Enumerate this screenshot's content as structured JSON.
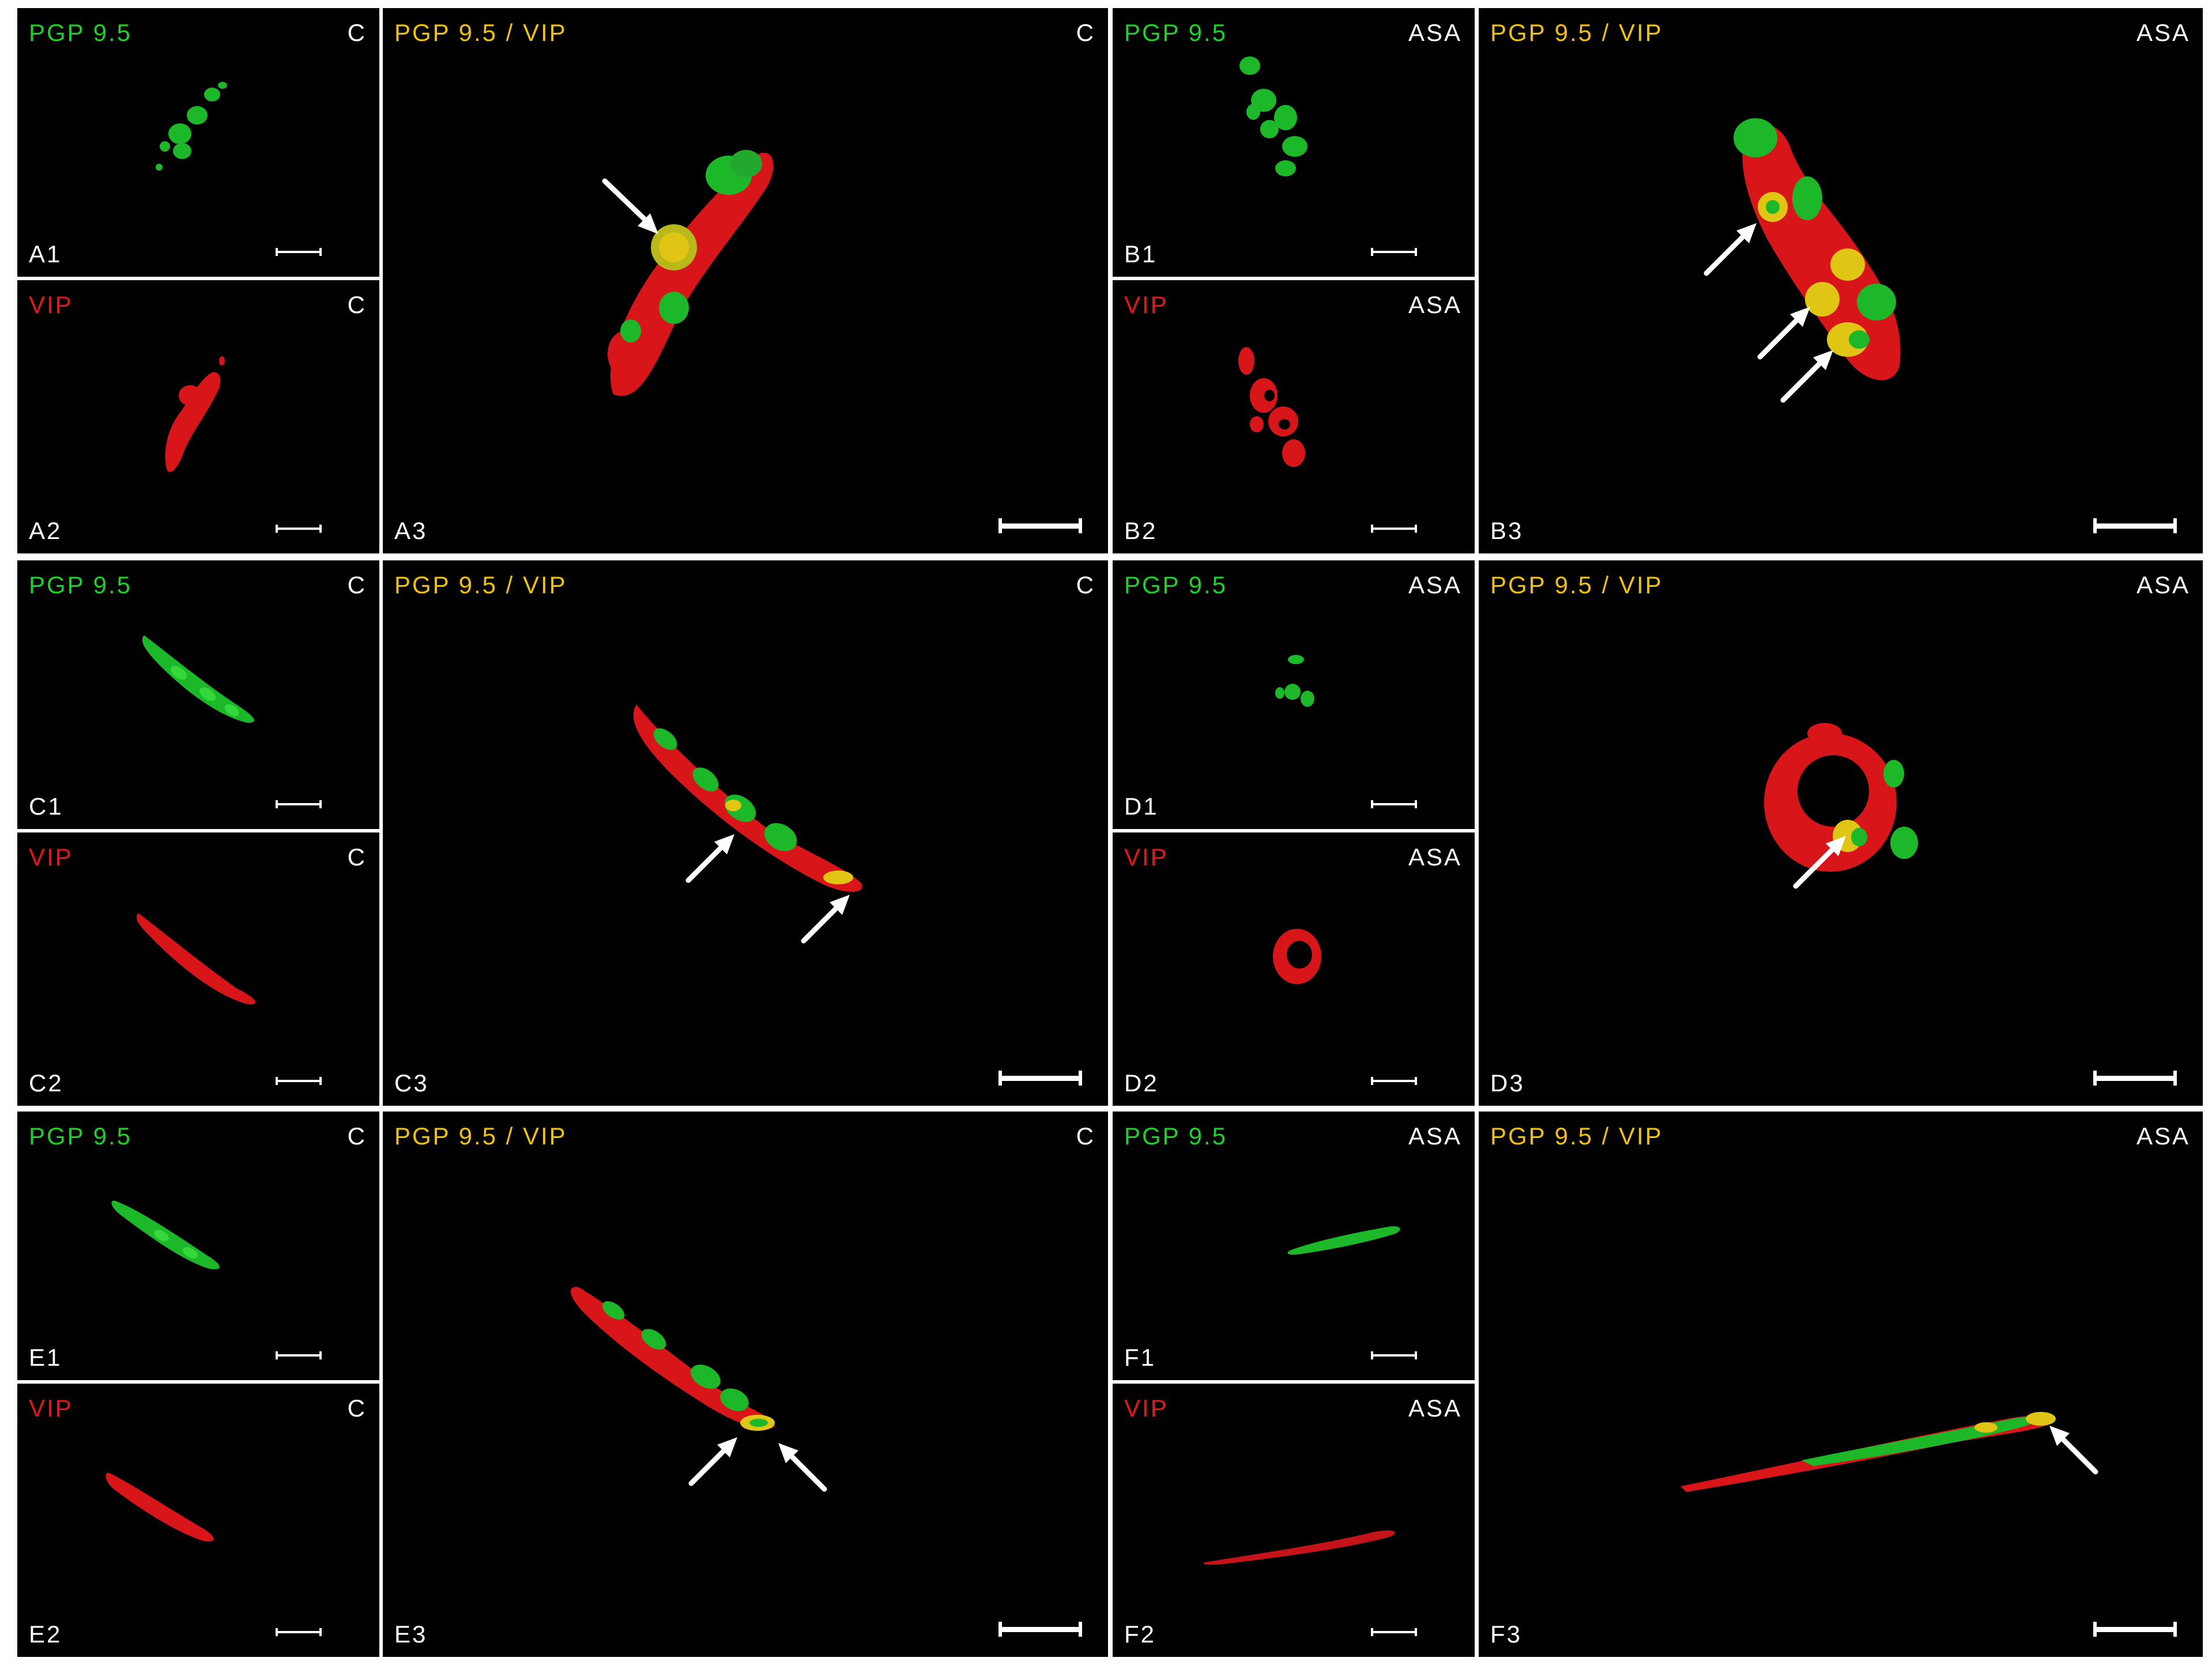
{
  "labels": {
    "pgp": "PGP 9.5",
    "vip": "VIP",
    "merge": "PGP 9.5 / VIP",
    "control": "C",
    "asa": "ASA"
  },
  "panels": {
    "A1": "A1",
    "A2": "A2",
    "A3": "A3",
    "B1": "B1",
    "B2": "B2",
    "B3": "B3",
    "C1": "C1",
    "C2": "C2",
    "C3": "C3",
    "D1": "D1",
    "D2": "D2",
    "D3": "D3",
    "E1": "E1",
    "E2": "E2",
    "E3": "E3",
    "F1": "F1",
    "F2": "F2",
    "F3": "F3"
  },
  "colors": {
    "pgp_green": "#1fcf2a",
    "vip_red": "#e3171b",
    "merge_yellow": "#f2c10c",
    "background": "#000000"
  }
}
